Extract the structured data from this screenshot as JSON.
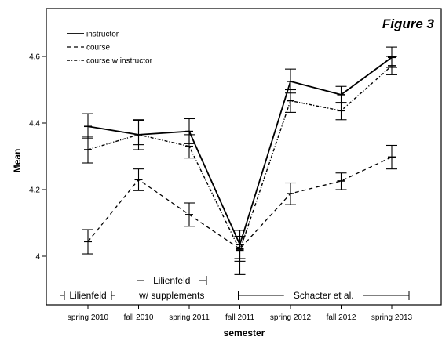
{
  "figure_label": "Figure 3",
  "chart_data": {
    "type": "line",
    "title": "",
    "xlabel": "semester",
    "ylabel": "Mean",
    "categories": [
      "spring 2010",
      "fall 2010",
      "spring 2011",
      "fall 2011",
      "spring 2012",
      "fall 2012",
      "spring 2013"
    ],
    "ylim": [
      3.9,
      4.74
    ],
    "yticks": [
      "4",
      "4.2",
      "4.4",
      "4.6"
    ],
    "ytick_values": [
      4.0,
      4.2,
      4.4,
      4.6
    ],
    "grid": false,
    "legend_position": "top-left",
    "series": [
      {
        "name": "instructor",
        "style": "solid",
        "values": [
          4.39,
          4.365,
          4.375,
          4.035,
          4.525,
          4.485,
          4.597
        ],
        "err_low": [
          4.355,
          4.335,
          4.338,
          3.993,
          4.49,
          4.46,
          4.567
        ],
        "err_high": [
          4.428,
          4.408,
          4.413,
          4.078,
          4.562,
          4.51,
          4.628
        ]
      },
      {
        "name": "course",
        "style": "dashed",
        "values": [
          4.044,
          4.23,
          4.125,
          4.022,
          4.188,
          4.226,
          4.298
        ],
        "err_low": [
          4.007,
          4.197,
          4.09,
          3.945,
          4.155,
          4.2,
          4.262
        ],
        "err_high": [
          4.08,
          4.262,
          4.16,
          4.078,
          4.22,
          4.25,
          4.333
        ]
      },
      {
        "name": "course w instructor",
        "style": "dashdot",
        "values": [
          4.32,
          4.365,
          4.33,
          4.018,
          4.467,
          4.437,
          4.572
        ],
        "err_low": [
          4.28,
          4.32,
          4.295,
          3.985,
          4.432,
          4.41,
          4.545
        ],
        "err_high": [
          4.36,
          4.41,
          4.365,
          4.06,
          4.5,
          4.462,
          4.6
        ]
      }
    ],
    "annotations": [
      {
        "lines": [
          "Lilienfeld"
        ],
        "from": "spring 2010",
        "to": "spring 2010"
      },
      {
        "lines": [
          "Lilienfeld",
          "w/ supplements"
        ],
        "from": "fall 2010",
        "to": "spring 2011"
      },
      {
        "lines": [
          "Schacter et al."
        ],
        "from": "fall 2011",
        "to": "spring 2013"
      }
    ]
  }
}
